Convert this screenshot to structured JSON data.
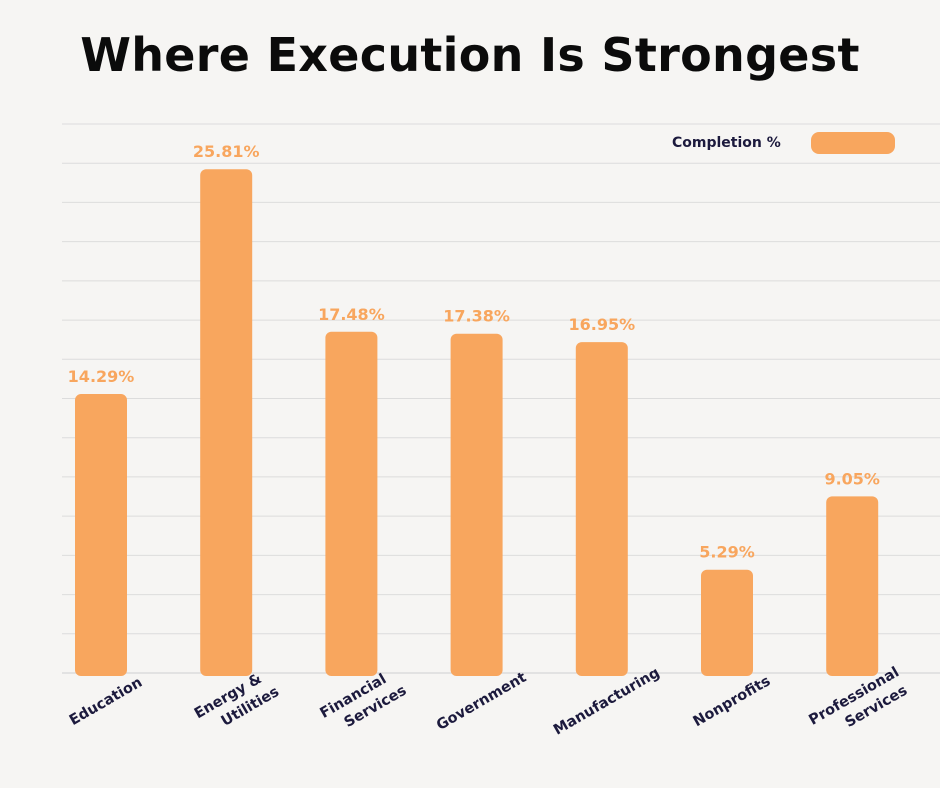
{
  "chart_data": {
    "type": "bar",
    "title": "Where Execution Is Strongest",
    "categories": [
      "Education",
      "Energy & Utilities",
      "Financial Services",
      "Government",
      "Manufacturing",
      "Nonprofits",
      "Professional Services"
    ],
    "category_lines": [
      [
        "Education"
      ],
      [
        "Energy &",
        "Utilities"
      ],
      [
        "Financial",
        "Services"
      ],
      [
        "Government"
      ],
      [
        "Manufacturing"
      ],
      [
        "Nonprofits"
      ],
      [
        "Professional",
        "Services"
      ]
    ],
    "series": [
      {
        "name": "Completion %",
        "values": [
          14.29,
          25.81,
          17.48,
          17.38,
          16.95,
          5.29,
          9.05
        ]
      }
    ],
    "data_labels": [
      "14.29%",
      "25.81%",
      "17.48%",
      "17.38%",
      "16.95%",
      "5.29%",
      "9.05%"
    ],
    "ylim": [
      0,
      28
    ],
    "grid": true,
    "legend_position": "top-right",
    "colors": {
      "bar": "#f8a65e",
      "data_label": "#f8a65e",
      "gridline": "#dcdcdc",
      "title": "#0b0b0b",
      "axis_text": "#1c1a3d"
    }
  }
}
